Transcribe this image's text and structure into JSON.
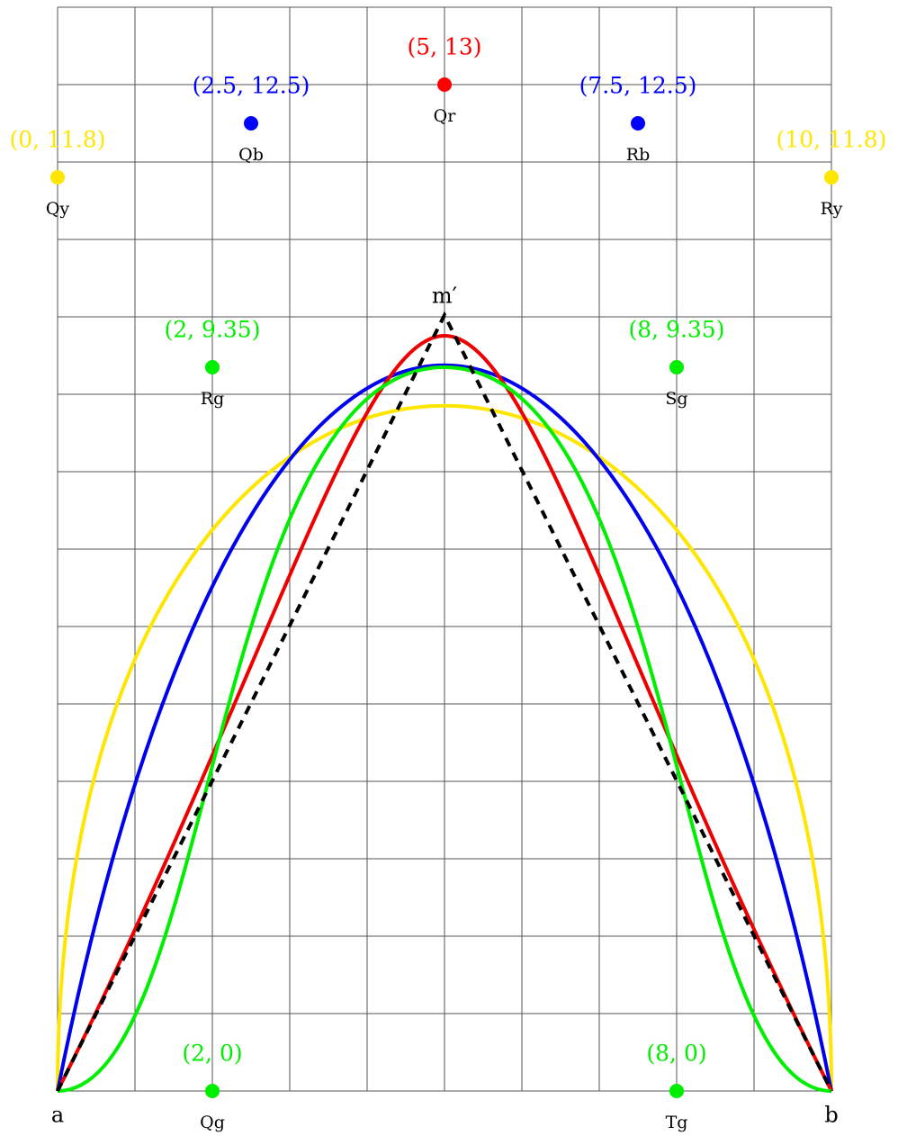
{
  "vertices": {
    "a": "a",
    "b": "b",
    "apex": "m′"
  },
  "points": [
    {
      "name": "Qy",
      "label": "(0, 11.8)",
      "color": "#ffe600"
    },
    {
      "name": "Qb",
      "label": "(2.5, 12.5)",
      "color": "#0000ff"
    },
    {
      "name": "Qr",
      "label": "(5, 13)",
      "color": "#ff0000"
    },
    {
      "name": "Rb",
      "label": "(7.5, 12.5)",
      "color": "#0000ff"
    },
    {
      "name": "Ry",
      "label": "(10, 11.8)",
      "color": "#ffe600"
    },
    {
      "name": "Rg",
      "label": "(2, 9.35)",
      "color": "#00ee00"
    },
    {
      "name": "Sg",
      "label": "(8, 9.35)",
      "color": "#00ee00"
    },
    {
      "name": "Qg",
      "label": "(2, 0)",
      "color": "#00ee00"
    },
    {
      "name": "Tg",
      "label": "(8, 0)",
      "color": "#00ee00"
    }
  ]
}
